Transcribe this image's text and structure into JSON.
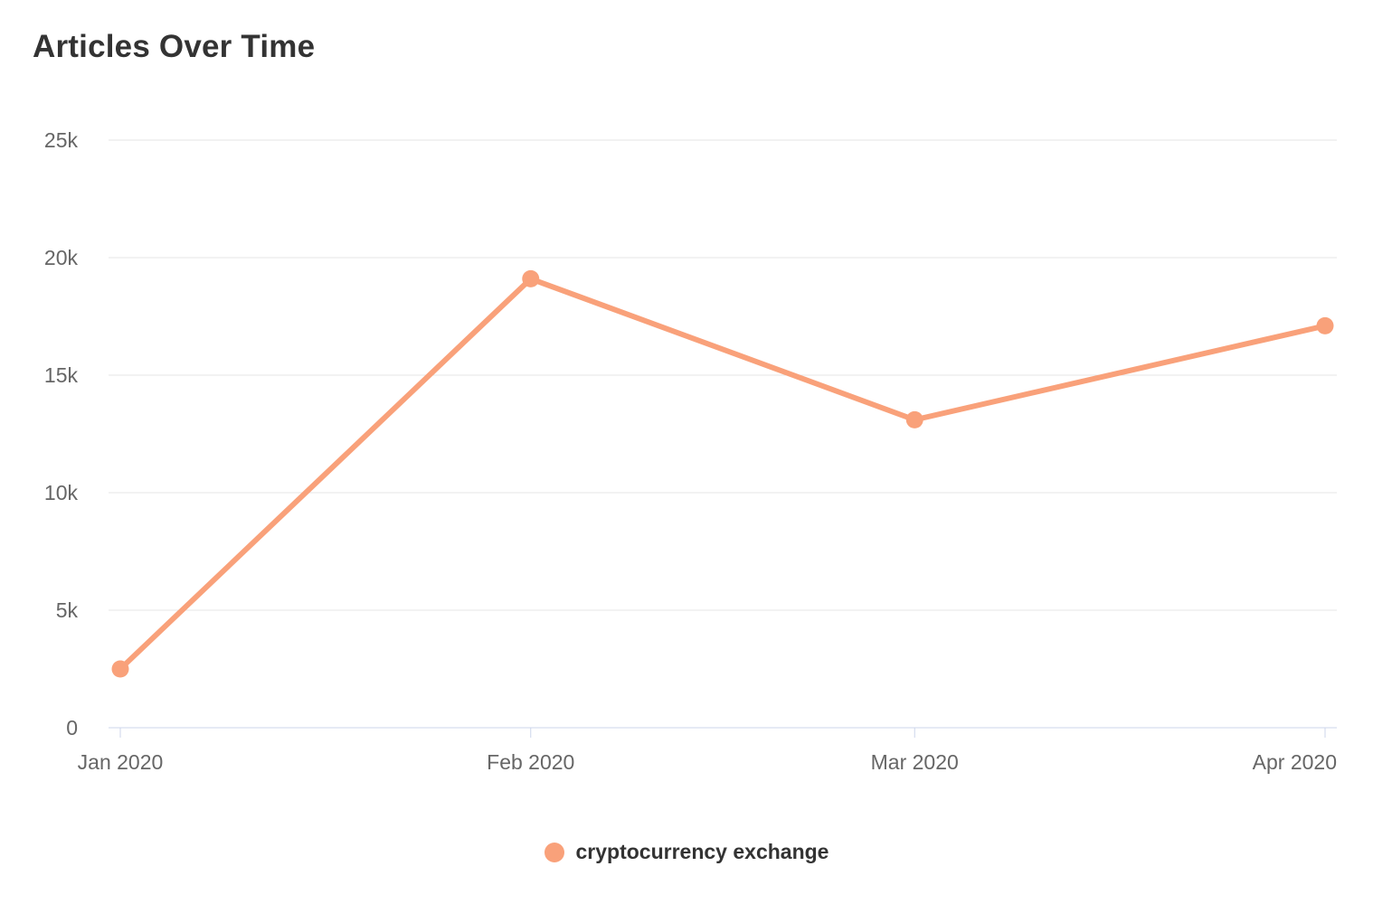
{
  "page": {
    "title": "Articles Over Time"
  },
  "chart_data": {
    "type": "line",
    "title": "Articles Over Time",
    "xlabel": "",
    "ylabel": "",
    "x_tick_labels": [
      "Jan 2020",
      "Feb 2020",
      "Mar 2020",
      "Apr 2020"
    ],
    "x_dates": [
      "2020-01-01",
      "2020-02-01",
      "2020-03-01",
      "2020-04-01"
    ],
    "series": [
      {
        "name": "cryptocurrency exchange",
        "color": "#F9A17A",
        "values": [
          2500,
          19100,
          13100,
          17100
        ]
      }
    ],
    "ylim": [
      0,
      25000
    ],
    "y_ticks": [
      0,
      5000,
      10000,
      15000,
      20000,
      25000
    ],
    "y_tick_labels": [
      "0",
      "5k",
      "10k",
      "15k",
      "20k",
      "25k"
    ],
    "grid": true,
    "legend_position": "bottom-center"
  },
  "legend": {
    "items": [
      {
        "label": "cryptocurrency exchange",
        "color": "#F9A17A"
      }
    ]
  },
  "colors": {
    "background": "#ffffff",
    "title_text": "#333333",
    "axis_text": "#666666",
    "gridline": "#e6e6e6",
    "axis_line": "#ccd6eb",
    "series": "#F9A17A"
  }
}
